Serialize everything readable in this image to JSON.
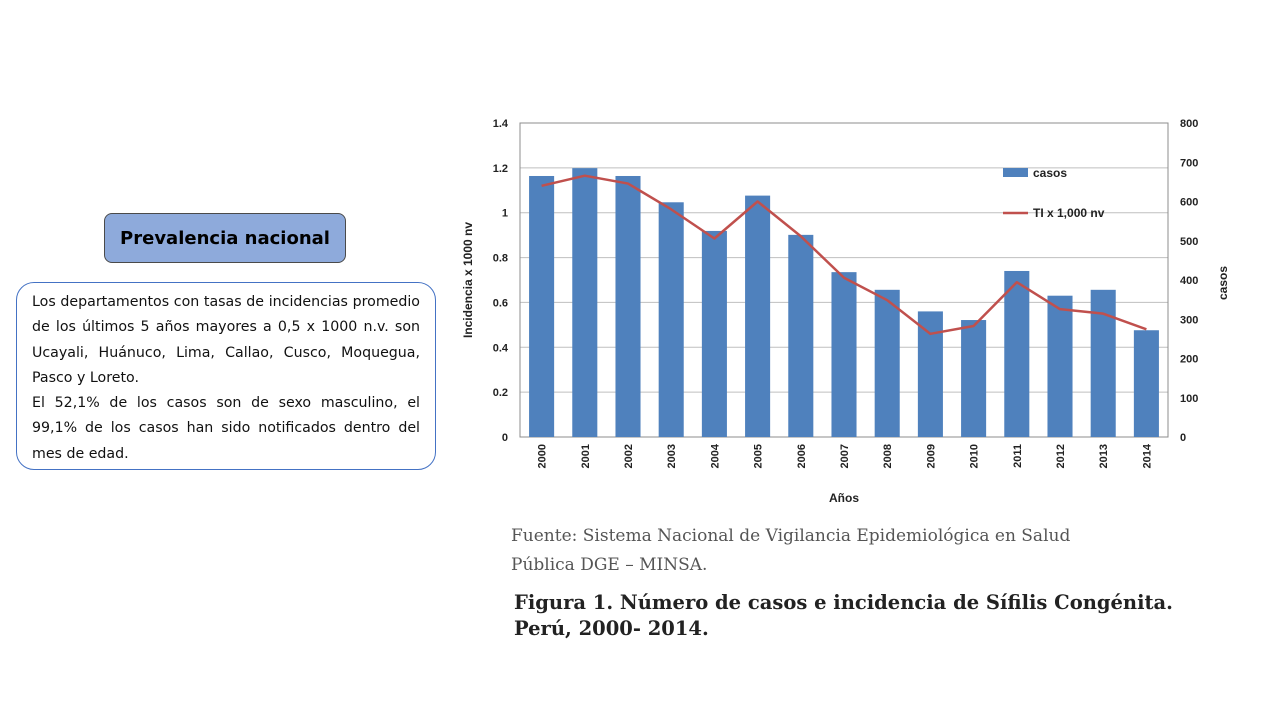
{
  "badge": {
    "label": "Prevalencia nacional"
  },
  "description": {
    "paragraph1": "Los departamentos con tasas de incidencias promedio de los últimos 5 años mayores a 0,5 x 1000 n.v. son Ucayali, Huánuco, Lima, Callao, Cusco, Moquegua, Pasco y Loreto.",
    "paragraph2": "El 52,1% de los casos son de sexo masculino, el 99,1% de los casos han sido notificados dentro del mes de edad."
  },
  "source": {
    "line1": "Fuente: Sistema Nacional de  Vigilancia Epidemiológica en Salud",
    "line2": "Pública DGE – MINSA."
  },
  "caption": {
    "line1": "Figura 1. Número de casos e incidencia de Sífilis Congénita.",
    "line2": "Perú, 2000- 2014."
  },
  "colors": {
    "bars": "#4f81bd",
    "line": "#c0504d",
    "grid": "#bfbfbf"
  },
  "chart_data": {
    "type": "bar",
    "categories": [
      "2000",
      "2001",
      "2002",
      "2003",
      "2004",
      "2005",
      "2006",
      "2007",
      "2008",
      "2009",
      "2010",
      "2011",
      "2012",
      "2013",
      "2014"
    ],
    "series": [
      {
        "name": "casos",
        "type": "bar",
        "axis": "right",
        "values": [
          665,
          685,
          665,
          598,
          525,
          615,
          515,
          420,
          375,
          320,
          298,
          423,
          360,
          375,
          272
        ]
      },
      {
        "name": "TI x 1,000 nv",
        "type": "line",
        "axis": "left",
        "values": [
          1.12,
          1.165,
          1.13,
          1.015,
          0.885,
          1.05,
          0.895,
          0.71,
          0.61,
          0.46,
          0.495,
          0.69,
          0.57,
          0.55,
          0.48
        ]
      }
    ],
    "xlabel": "Años",
    "ylabel": "Incidencia  x 1000 nv",
    "y2label": "casos",
    "ylim": [
      0,
      1.4
    ],
    "y2lim": [
      0,
      800
    ],
    "yticks": [
      "0",
      "0.2",
      "0.4",
      "0.6",
      "0.8",
      "1",
      "1.2",
      "1.4"
    ],
    "y2ticks": [
      "0",
      "100",
      "200",
      "300",
      "400",
      "500",
      "600",
      "700",
      "800"
    ],
    "grid": true,
    "legend": "top-right"
  }
}
